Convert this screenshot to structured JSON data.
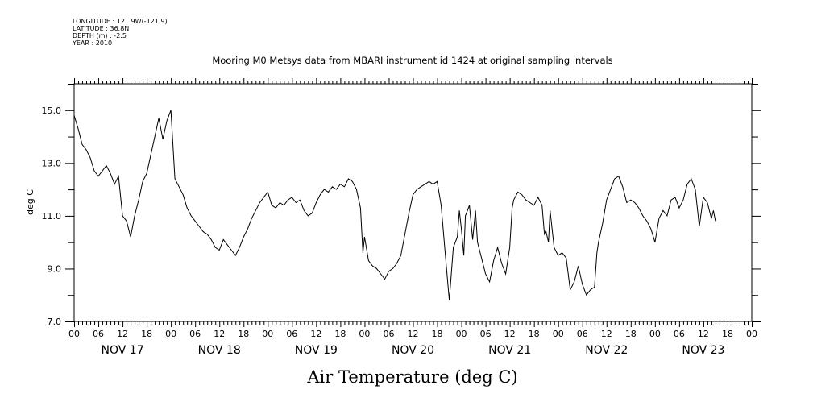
{
  "meta": {
    "longitude": "LONGITUDE : 121.9W(-121.9)",
    "latitude": "LATITUDE : 36.8N",
    "depth": "DEPTH (m) : -2.5",
    "year": "YEAR : 2010"
  },
  "chart_data": {
    "type": "line",
    "title": "Mooring M0 Metsys data from MBARI instrument id 1424 at original sampling intervals",
    "xlabel": "Air Temperature (deg C)",
    "ylabel": "deg C",
    "ylim": [
      7.0,
      16.0
    ],
    "yticks": [
      "7.0",
      "9.0",
      "11.0",
      "13.0",
      "15.0"
    ],
    "x_unit": "hours from NOV 17 00:00",
    "xlim": [
      0,
      168
    ],
    "hour_tick_labels": [
      "00",
      "06",
      "12",
      "18"
    ],
    "day_labels": [
      "NOV 17",
      "NOV 18",
      "NOV 19",
      "NOV 20",
      "NOV 21",
      "NOV 22",
      "NOV 23"
    ],
    "grid": false,
    "series": [
      {
        "color": "#000000",
        "points": [
          [
            0,
            14.8
          ],
          [
            1,
            14.3
          ],
          [
            2,
            13.7
          ],
          [
            3,
            13.5
          ],
          [
            4,
            13.2
          ],
          [
            5,
            12.7
          ],
          [
            6,
            12.5
          ],
          [
            7,
            12.7
          ],
          [
            8,
            12.9
          ],
          [
            9,
            12.6
          ],
          [
            10,
            12.2
          ],
          [
            11,
            12.5
          ],
          [
            12,
            11.0
          ],
          [
            13,
            10.8
          ],
          [
            14,
            10.2
          ],
          [
            15,
            11.0
          ],
          [
            16,
            11.6
          ],
          [
            17,
            12.3
          ],
          [
            18,
            12.6
          ],
          [
            19,
            13.3
          ],
          [
            20,
            14.0
          ],
          [
            21,
            14.7
          ],
          [
            22,
            13.9
          ],
          [
            23,
            14.6
          ],
          [
            24,
            15.0
          ],
          [
            25,
            12.4
          ],
          [
            26,
            12.1
          ],
          [
            27,
            11.8
          ],
          [
            28,
            11.3
          ],
          [
            29,
            11.0
          ],
          [
            30,
            10.8
          ],
          [
            31,
            10.6
          ],
          [
            32,
            10.4
          ],
          [
            33,
            10.3
          ],
          [
            34,
            10.1
          ],
          [
            35,
            9.8
          ],
          [
            36,
            9.7
          ],
          [
            37,
            10.1
          ],
          [
            38,
            9.9
          ],
          [
            39,
            9.7
          ],
          [
            40,
            9.5
          ],
          [
            41,
            9.8
          ],
          [
            42,
            10.2
          ],
          [
            43,
            10.5
          ],
          [
            44,
            10.9
          ],
          [
            45,
            11.2
          ],
          [
            46,
            11.5
          ],
          [
            47,
            11.7
          ],
          [
            48,
            11.9
          ],
          [
            49,
            11.4
          ],
          [
            50,
            11.3
          ],
          [
            51,
            11.5
          ],
          [
            52,
            11.4
          ],
          [
            53,
            11.6
          ],
          [
            54,
            11.7
          ],
          [
            55,
            11.5
          ],
          [
            56,
            11.6
          ],
          [
            57,
            11.2
          ],
          [
            58,
            11.0
          ],
          [
            59,
            11.1
          ],
          [
            60,
            11.5
          ],
          [
            61,
            11.8
          ],
          [
            62,
            12.0
          ],
          [
            63,
            11.9
          ],
          [
            64,
            12.1
          ],
          [
            65,
            12.0
          ],
          [
            66,
            12.2
          ],
          [
            67,
            12.1
          ],
          [
            68,
            12.4
          ],
          [
            69,
            12.3
          ],
          [
            70,
            12.0
          ],
          [
            71,
            11.3
          ],
          [
            71.6,
            9.6
          ],
          [
            72,
            10.2
          ],
          [
            73,
            9.3
          ],
          [
            74,
            9.1
          ],
          [
            75,
            9.0
          ],
          [
            76,
            8.8
          ],
          [
            77,
            8.6
          ],
          [
            78,
            8.9
          ],
          [
            79,
            9.0
          ],
          [
            80,
            9.2
          ],
          [
            81,
            9.5
          ],
          [
            82,
            10.3
          ],
          [
            83,
            11.1
          ],
          [
            84,
            11.8
          ],
          [
            85,
            12.0
          ],
          [
            86,
            12.1
          ],
          [
            87,
            12.2
          ],
          [
            88,
            12.3
          ],
          [
            89,
            12.2
          ],
          [
            90,
            12.3
          ],
          [
            91,
            11.4
          ],
          [
            92,
            9.6
          ],
          [
            93,
            7.8
          ],
          [
            94,
            9.8
          ],
          [
            95,
            10.2
          ],
          [
            95.5,
            11.2
          ],
          [
            96,
            10.5
          ],
          [
            96.6,
            9.5
          ],
          [
            97,
            11.0
          ],
          [
            98,
            11.4
          ],
          [
            98.8,
            10.1
          ],
          [
            99.5,
            11.2
          ],
          [
            100,
            10.0
          ],
          [
            101,
            9.4
          ],
          [
            102,
            8.8
          ],
          [
            103,
            8.5
          ],
          [
            104,
            9.3
          ],
          [
            105,
            9.8
          ],
          [
            106,
            9.2
          ],
          [
            107,
            8.8
          ],
          [
            108,
            9.8
          ],
          [
            108.6,
            11.3
          ],
          [
            109,
            11.6
          ],
          [
            110,
            11.9
          ],
          [
            111,
            11.8
          ],
          [
            112,
            11.6
          ],
          [
            113,
            11.5
          ],
          [
            114,
            11.4
          ],
          [
            115,
            11.7
          ],
          [
            116,
            11.4
          ],
          [
            116.6,
            10.3
          ],
          [
            117,
            10.4
          ],
          [
            117.6,
            10.0
          ],
          [
            118,
            11.2
          ],
          [
            119,
            9.8
          ],
          [
            120,
            9.5
          ],
          [
            121,
            9.6
          ],
          [
            122,
            9.4
          ],
          [
            123,
            8.2
          ],
          [
            124,
            8.5
          ],
          [
            125,
            9.1
          ],
          [
            126,
            8.4
          ],
          [
            127,
            8.0
          ],
          [
            128,
            8.2
          ],
          [
            129,
            8.3
          ],
          [
            129.6,
            9.6
          ],
          [
            130,
            10.0
          ],
          [
            131,
            10.7
          ],
          [
            132,
            11.6
          ],
          [
            133,
            12.0
          ],
          [
            134,
            12.4
          ],
          [
            135,
            12.5
          ],
          [
            136,
            12.1
          ],
          [
            137,
            11.5
          ],
          [
            138,
            11.6
          ],
          [
            139,
            11.5
          ],
          [
            140,
            11.3
          ],
          [
            141,
            11.0
          ],
          [
            142,
            10.8
          ],
          [
            143,
            10.5
          ],
          [
            144,
            10.0
          ],
          [
            145,
            10.9
          ],
          [
            146,
            11.2
          ],
          [
            147,
            11.0
          ],
          [
            148,
            11.6
          ],
          [
            149,
            11.7
          ],
          [
            150,
            11.3
          ],
          [
            151,
            11.6
          ],
          [
            152,
            12.2
          ],
          [
            153,
            12.4
          ],
          [
            154,
            12.0
          ],
          [
            155,
            10.6
          ],
          [
            156,
            11.7
          ],
          [
            157,
            11.5
          ],
          [
            158,
            10.9
          ],
          [
            158.5,
            11.2
          ],
          [
            159,
            10.8
          ]
        ]
      }
    ]
  }
}
